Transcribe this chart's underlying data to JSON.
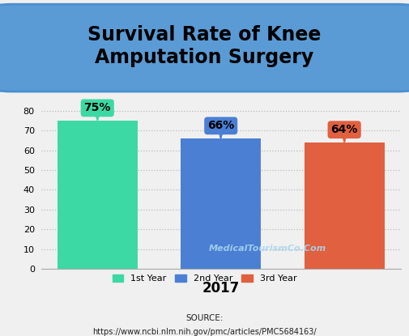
{
  "title": "Survival Rate of Knee\nAmputation Surgery",
  "categories": [
    "1st Year",
    "2nd Year",
    "3rd Year"
  ],
  "values": [
    75,
    66,
    64
  ],
  "bar_colors": [
    "#3dd9a4",
    "#4a7fd4",
    "#e06040"
  ],
  "label_colors": [
    "#3dd9a4",
    "#4a7fd4",
    "#e06040"
  ],
  "value_labels": [
    "75%",
    "66%",
    "64%"
  ],
  "xlabel": "2017",
  "ylim": [
    0,
    85
  ],
  "yticks": [
    0,
    10,
    20,
    30,
    40,
    50,
    60,
    70,
    80
  ],
  "legend_labels": [
    "1st Year",
    "2nd Year",
    "3rd Year"
  ],
  "source_line1": "SOURCE:",
  "source_line2": "https://www.ncbi.nlm.nih.gov/pmc/articles/PMC5684163/",
  "watermark": "MedicalTourismCo.Com",
  "title_bg_color": "#5b9bd5",
  "background_color": "#f0f0f0",
  "grid_color": "#bbbbbb"
}
